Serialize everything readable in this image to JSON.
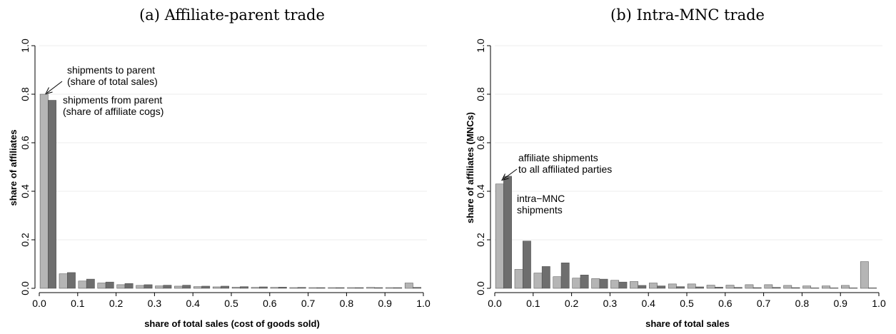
{
  "chart_data": [
    {
      "type": "bar",
      "title": "(a) Affiliate-parent trade",
      "xlabel": "share of total sales (cost of goods sold)",
      "ylabel": "share of affiliates",
      "xlim": [
        0,
        1
      ],
      "ylim": [
        0,
        1
      ],
      "xticks": [
        "0.0",
        "0.1",
        "0.2",
        "0.3",
        "0.4",
        "0.5",
        "0.6",
        "0.7",
        "0.8",
        "0.9",
        "1.0"
      ],
      "yticks": [
        "0.0",
        "0.2",
        "0.4",
        "0.6",
        "0.8",
        "1.0"
      ],
      "bin_width": 0.05,
      "grid": true,
      "colors": [
        "#b5b5b5",
        "#6e6e6e"
      ],
      "series": [
        {
          "values": [
            0.8,
            0.06,
            0.03,
            0.022,
            0.015,
            0.012,
            0.01,
            0.009,
            0.007,
            0.006,
            0.005,
            0.004,
            0.004,
            0.003,
            0.003,
            0.003,
            0.003,
            0.004,
            0.003,
            0.022
          ]
        },
        {
          "values": [
            0.775,
            0.065,
            0.038,
            0.026,
            0.02,
            0.015,
            0.013,
            0.013,
            0.009,
            0.009,
            0.007,
            0.006,
            0.005,
            0.004,
            0.003,
            0.003,
            0.003,
            0.003,
            0.003,
            0.004
          ]
        }
      ],
      "annotations": [
        {
          "lines": [
            "shipments to parent",
            "(share of total sales)"
          ]
        },
        {
          "lines": [
            "shipments from parent",
            "(share of affiliate cogs)"
          ]
        }
      ]
    },
    {
      "type": "bar",
      "title": "(b) Intra-MNC trade",
      "xlabel": "share of total sales",
      "ylabel": "share of affiliates (MNCs)",
      "xlim": [
        0,
        1
      ],
      "ylim": [
        0,
        1
      ],
      "xticks": [
        "0.0",
        "0.1",
        "0.2",
        "0.3",
        "0.4",
        "0.5",
        "0.6",
        "0.7",
        "0.8",
        "0.9",
        "1.0"
      ],
      "yticks": [
        "0.0",
        "0.2",
        "0.4",
        "0.6",
        "0.8",
        "1.0"
      ],
      "bin_width": 0.05,
      "grid": true,
      "colors": [
        "#b5b5b5",
        "#6e6e6e"
      ],
      "series": [
        {
          "values": [
            0.43,
            0.078,
            0.063,
            0.048,
            0.042,
            0.04,
            0.033,
            0.028,
            0.022,
            0.018,
            0.018,
            0.013,
            0.013,
            0.015,
            0.015,
            0.012,
            0.01,
            0.01,
            0.012,
            0.11
          ]
        },
        {
          "values": [
            0.462,
            0.195,
            0.09,
            0.105,
            0.055,
            0.038,
            0.026,
            0.012,
            0.01,
            0.007,
            0.006,
            0.005,
            0.004,
            0.003,
            0.004,
            0.003,
            0.002,
            0.002,
            0.002,
            0.002
          ]
        }
      ],
      "annotations": [
        {
          "lines": [
            "affiliate shipments",
            "to all affiliated parties"
          ]
        },
        {
          "lines": [
            "intra−MNC",
            "shipments"
          ]
        }
      ]
    }
  ]
}
